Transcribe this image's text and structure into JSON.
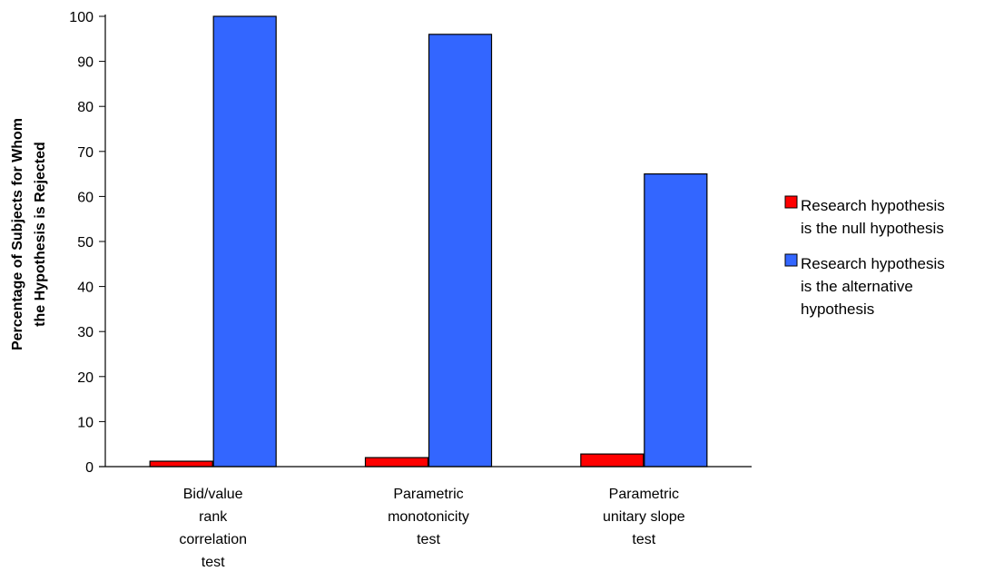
{
  "chart_data": {
    "type": "bar",
    "title": "",
    "ylabel": [
      "Percentage of Subjects for Whom",
      "the Hypothesis is Rejected"
    ],
    "xlabel": "",
    "ylim": [
      0,
      100
    ],
    "yticks": [
      "0",
      "10",
      "20",
      "30",
      "40",
      "50",
      "60",
      "70",
      "80",
      "90",
      "100"
    ],
    "ytick_values": [
      0,
      10,
      20,
      30,
      40,
      50,
      60,
      70,
      80,
      90,
      100
    ],
    "categories": [
      [
        "Bid/value",
        "rank",
        "correlation",
        "test"
      ],
      [
        "Parametric",
        "monotonicity",
        "test"
      ],
      [
        "Parametric",
        "unitary slope",
        "test"
      ]
    ],
    "series": [
      {
        "name": [
          "Research hypothesis",
          "is the null hypothesis"
        ],
        "color": "#ff0000",
        "values": [
          1.2,
          2,
          2.8
        ]
      },
      {
        "name": [
          "Research hypothesis",
          "is the alternative",
          "hypothesis"
        ],
        "color": "#3366ff",
        "values": [
          100,
          96,
          65
        ]
      }
    ],
    "grid": false,
    "legend_position": "right"
  }
}
